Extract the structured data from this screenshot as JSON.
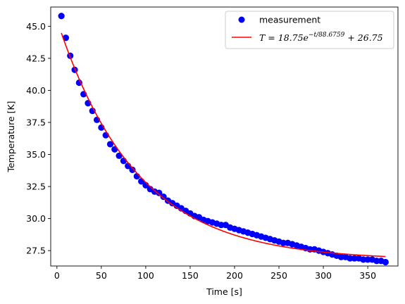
{
  "chart_data": {
    "type": "scatter",
    "title": "",
    "xlabel": "Time [s]",
    "ylabel": "Temperature [K]",
    "xlim": [
      -7,
      384
    ],
    "ylim": [
      26.3,
      46.5
    ],
    "xticks": [
      0,
      50,
      100,
      150,
      200,
      250,
      300,
      350
    ],
    "yticks": [
      27.5,
      30.0,
      32.5,
      35.0,
      37.5,
      40.0,
      42.5,
      45.0
    ],
    "xtick_labels": [
      "0",
      "50",
      "100",
      "150",
      "200",
      "250",
      "300",
      "350"
    ],
    "ytick_labels": [
      "27.5",
      "30.0",
      "32.5",
      "35.0",
      "37.5",
      "40.0",
      "42.5",
      "45.0"
    ],
    "grid": false,
    "legend_position": "top-right",
    "series": [
      {
        "name": "measurement",
        "kind": "scatter",
        "color": "#0000ff",
        "x": [
          5,
          10,
          15,
          20,
          25,
          30,
          35,
          40,
          45,
          50,
          55,
          60,
          65,
          70,
          75,
          80,
          85,
          90,
          95,
          100,
          105,
          110,
          115,
          120,
          125,
          130,
          135,
          140,
          145,
          150,
          155,
          160,
          165,
          170,
          175,
          180,
          185,
          190,
          195,
          200,
          205,
          210,
          215,
          220,
          225,
          230,
          235,
          240,
          245,
          250,
          255,
          260,
          265,
          270,
          275,
          280,
          285,
          290,
          295,
          300,
          305,
          310,
          315,
          320,
          325,
          330,
          335,
          340,
          345,
          350,
          355,
          360,
          365,
          370
        ],
        "y": [
          45.8,
          44.1,
          42.7,
          41.6,
          40.6,
          39.7,
          39.0,
          38.4,
          37.7,
          37.1,
          36.5,
          35.8,
          35.4,
          34.9,
          34.5,
          34.1,
          33.8,
          33.3,
          32.9,
          32.6,
          32.3,
          32.1,
          32.0,
          31.7,
          31.4,
          31.2,
          31.0,
          30.8,
          30.6,
          30.4,
          30.2,
          30.1,
          29.9,
          29.8,
          29.7,
          29.6,
          29.5,
          29.5,
          29.3,
          29.2,
          29.1,
          29.0,
          28.9,
          28.8,
          28.7,
          28.6,
          28.5,
          28.4,
          28.3,
          28.2,
          28.1,
          28.1,
          28.0,
          27.9,
          27.8,
          27.7,
          27.6,
          27.6,
          27.5,
          27.4,
          27.3,
          27.2,
          27.1,
          27.0,
          27.0,
          26.9,
          26.9,
          26.9,
          26.8,
          26.8,
          26.8,
          26.7,
          26.7,
          26.6
        ]
      },
      {
        "name": "T = 18.75e^{-t/88.6759} + 26.75",
        "kind": "line",
        "color": "#ff0000",
        "model": {
          "a": 18.75,
          "tau": 88.6759,
          "c": 26.75
        },
        "x_range": [
          5,
          370
        ]
      }
    ],
    "legend": {
      "measurement_label": "measurement",
      "fit_prefix": "T = 18.75",
      "fit_base": "e",
      "fit_exponent": "−t/88.6759",
      "fit_suffix": " + 26.75"
    }
  },
  "colors": {
    "axis": "#000000",
    "scatter": "#0000ff",
    "fit_line": "#ff0000",
    "legend_border": "#cccccc"
  }
}
